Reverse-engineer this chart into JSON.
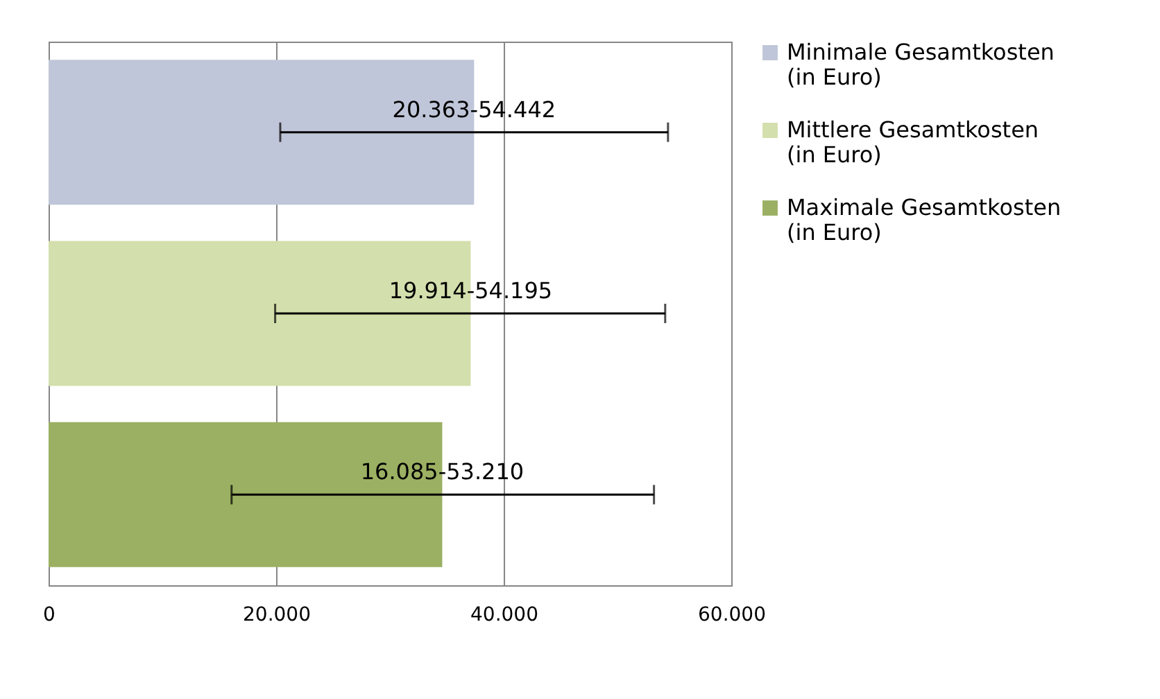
{
  "chart_data": {
    "type": "bar",
    "orientation": "horizontal",
    "categories": [
      null,
      null,
      null
    ],
    "series": [
      {
        "name": "Minimale Gesamtkosten (in Euro)",
        "color": "#c0c6d9",
        "values": [
          37400,
          null,
          null
        ],
        "errors": [
          [
            20363,
            54442
          ],
          null,
          null
        ],
        "value_labels": [
          "20.363-54.442",
          null,
          null
        ]
      },
      {
        "name": "Mittlere Gesamtkosten (in Euro)",
        "color": "#d3dfac",
        "values": [
          null,
          37100,
          null
        ],
        "errors": [
          null,
          [
            19914,
            54195
          ],
          null
        ],
        "value_labels": [
          null,
          "19.914-54.195",
          null
        ]
      },
      {
        "name": "Maximale Gesamtkosten (in Euro)",
        "color": "#9bb062",
        "values": [
          null,
          null,
          34600
        ],
        "errors": [
          null,
          null,
          [
            16085,
            53210
          ]
        ],
        "value_labels": [
          null,
          null,
          "16.085-53.210"
        ]
      }
    ],
    "xlim": [
      0,
      60000
    ],
    "xticks": [
      0,
      {
        "value": 20000,
        "label": "20.000"
      },
      {
        "value": 40000,
        "label": "40.000"
      },
      {
        "value": 60000,
        "label": "60.000"
      }
    ],
    "grid": "x",
    "legend": "right"
  }
}
